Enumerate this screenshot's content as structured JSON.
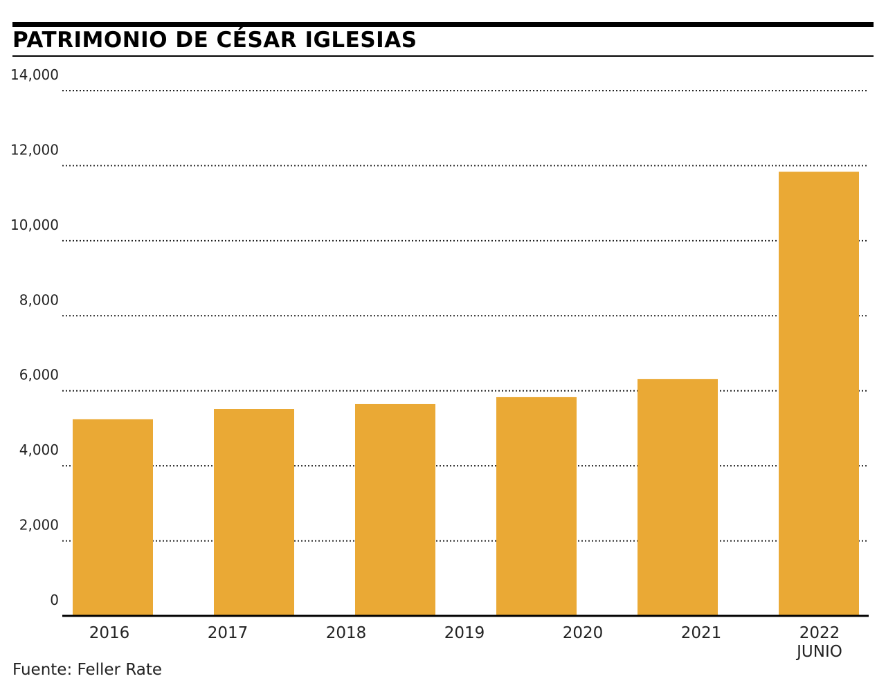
{
  "chart_data": {
    "type": "bar",
    "title": "PATRIMONIO DE CÉSAR IGLESIAS",
    "categories": [
      "2016",
      "2017",
      "2018",
      "2019",
      "2020",
      "2021",
      "2022\nJUNIO"
    ],
    "values": [
      5240,
      5515,
      5645,
      5830,
      null,
      6310,
      11840
    ],
    "color": "#eaa935",
    "ylim": [
      0,
      14000
    ],
    "yticks": [
      0,
      {
        "value": 2000,
        "label": "2,000"
      },
      {
        "value": 4000,
        "label": "4,000"
      },
      {
        "value": 6000,
        "label": "6,000"
      },
      {
        "value": 8000,
        "label": "8,000"
      },
      {
        "value": 10000,
        "label": "10,000"
      },
      {
        "value": 12000,
        "label": "12,000"
      },
      {
        "value": 14000,
        "label": "14,000"
      }
    ],
    "grid": true,
    "source": "Fuente: Feller Rate"
  }
}
